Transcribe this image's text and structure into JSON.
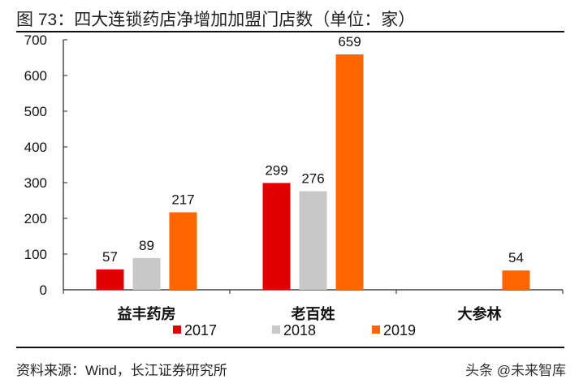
{
  "title": "图 73：四大连锁药店净增加加盟门店数（单位：家）",
  "source": "资料来源：Wind，长江证券研究所",
  "watermark": "头条 @未来智库",
  "chart_data": {
    "type": "bar",
    "categories": [
      "益丰药房",
      "老百姓",
      "大参林"
    ],
    "series": [
      {
        "name": "2017",
        "color": "#e00000",
        "values": [
          57,
          299,
          null
        ]
      },
      {
        "name": "2018",
        "color": "#c8c8c8",
        "values": [
          89,
          276,
          null
        ]
      },
      {
        "name": "2019",
        "color": "#ff6600",
        "values": [
          217,
          659,
          54
        ]
      }
    ],
    "ylim": [
      0,
      700
    ],
    "yticks": [
      0,
      100,
      200,
      300,
      400,
      500,
      600,
      700
    ],
    "grid": false,
    "legend": "bottom",
    "data_labels": true
  }
}
